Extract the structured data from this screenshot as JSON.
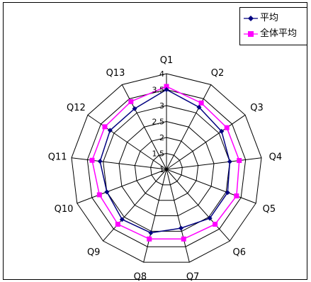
{
  "chart_data": {
    "type": "radar",
    "categories": [
      "Q1",
      "Q2",
      "Q3",
      "Q4",
      "Q5",
      "Q6",
      "Q7",
      "Q8",
      "Q9",
      "Q10",
      "Q11",
      "Q12",
      "Q13"
    ],
    "series": [
      {
        "name": "平均",
        "values": [
          3.5,
          3.2,
          3.1,
          3.0,
          3.05,
          3.05,
          2.9,
          3.05,
          3.1,
          3.0,
          3.1,
          3.15,
          3.15
        ],
        "color": "#000080"
      },
      {
        "name": "全体平均",
        "values": [
          3.6,
          3.35,
          3.3,
          3.3,
          3.35,
          3.3,
          3.25,
          3.25,
          3.3,
          3.25,
          3.35,
          3.35,
          3.4
        ],
        "color": "#ff00ff"
      }
    ],
    "rmin": 1,
    "rmax": 4,
    "ticks": [
      "1",
      "1.5",
      "2",
      "2.5",
      "3",
      "3.5",
      "4"
    ],
    "grid": true,
    "legend_position": "top-right"
  }
}
